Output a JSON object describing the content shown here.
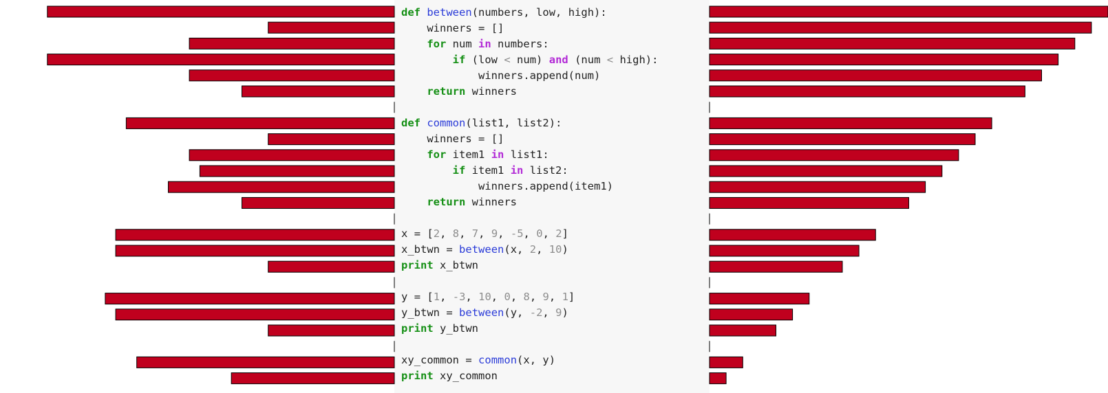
{
  "chart_data": {
    "type": "bar",
    "layout": "butterfly",
    "grid": false,
    "bar_color": "#c0001e",
    "bar_stroke": "#000000",
    "categories": [
      "def between(numbers, low, high):",
      "    winners = []",
      "    for num in numbers:",
      "        if (low < num) and (num < high):",
      "            winners.append(num)",
      "    return winners",
      "",
      "def common(list1, list2):",
      "    winners = []",
      "    for item1 in list1:",
      "        if item1 in list2:",
      "            winners.append(item1)",
      "    return winners",
      "",
      "x = [2, 8, 7, 9, -5, 0, 2]",
      "x_btwn = between(x, 2, 10)",
      "print x_btwn",
      "",
      "y = [1, -3, 10, 0, 8, 9, 1]",
      "y_btwn = between(y, -2, 9)",
      "print y_btwn",
      "",
      "xy_common = common(x, y)",
      "print xy_common"
    ],
    "series": [
      {
        "side": "left",
        "values": [
          33,
          12,
          19.5,
          33,
          19.5,
          14.5,
          0,
          25.5,
          12,
          19.5,
          18.5,
          21.5,
          14.5,
          0,
          26.5,
          26.5,
          12,
          0,
          27.5,
          26.5,
          12,
          0,
          24.5,
          15.5
        ]
      },
      {
        "side": "right",
        "values": [
          36,
          34.5,
          33,
          31.5,
          30,
          28.5,
          0,
          25.5,
          24,
          22.5,
          21,
          19.5,
          18,
          0,
          15,
          13.5,
          12,
          0,
          9,
          7.5,
          6,
          0,
          3,
          1.5
        ]
      }
    ],
    "max_value": 36
  },
  "code_tokens": {
    "keywords": [
      "def",
      "for",
      "if",
      "return",
      "print"
    ],
    "operators": [
      "in",
      "and"
    ],
    "functions": [
      "between",
      "common"
    ],
    "comparisons": [
      "<"
    ]
  }
}
